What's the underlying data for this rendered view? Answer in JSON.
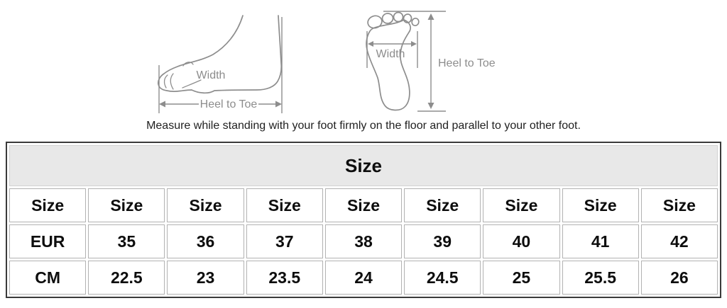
{
  "diagrams": {
    "side_view": {
      "name": "foot side view",
      "width_label": "Width",
      "heel_to_toe_label": "Heel to Toe"
    },
    "bottom_view": {
      "name": "foot sole view",
      "width_label": "Width",
      "heel_to_toe_label": "Heel to Toe"
    }
  },
  "instruction": "Measure while standing with your foot firmly on the floor and parallel to your other foot.",
  "size_table": {
    "title": "Size",
    "rows": [
      [
        "Size",
        "Size",
        "Size",
        "Size",
        "Size",
        "Size",
        "Size",
        "Size",
        "Size"
      ],
      [
        "EUR",
        "35",
        "36",
        "37",
        "38",
        "39",
        "40",
        "41",
        "42"
      ],
      [
        "CM",
        "22.5",
        "23",
        "23.5",
        "24",
        "24.5",
        "25",
        "25.5",
        "26"
      ]
    ]
  },
  "chart_data": {
    "type": "table",
    "title": "Size",
    "columns": [
      "Size",
      "Size",
      "Size",
      "Size",
      "Size",
      "Size",
      "Size",
      "Size",
      "Size"
    ],
    "rows": [
      [
        "EUR",
        "35",
        "36",
        "37",
        "38",
        "39",
        "40",
        "41",
        "42"
      ],
      [
        "CM",
        "22.5",
        "23",
        "23.5",
        "24",
        "24.5",
        "25",
        "25.5",
        "26"
      ]
    ]
  },
  "colors": {
    "table_header_bg": "#e8e8e8",
    "table_outer_border": "#3b3b3b",
    "cell_border": "#b2b2b2",
    "table_text": "#0d0d0d",
    "diagram_line": "#8d8d8d",
    "instruction_text": "#1f1f1f",
    "background": "#ffffff"
  }
}
